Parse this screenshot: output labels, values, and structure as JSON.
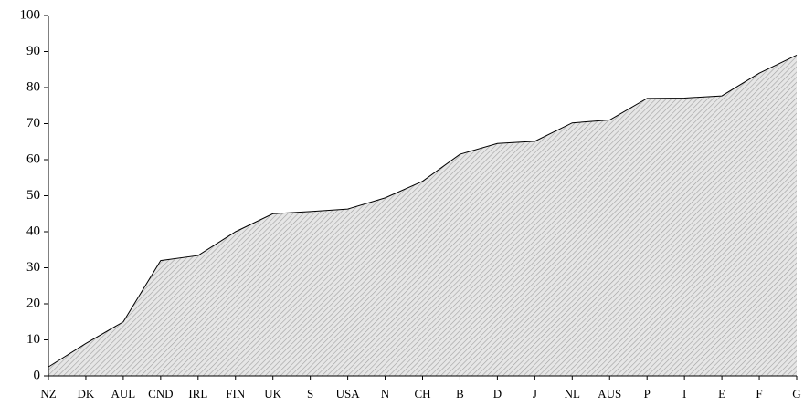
{
  "chart_data": {
    "type": "area",
    "categories": [
      "NZ",
      "DK",
      "AUL",
      "CND",
      "IRL",
      "FIN",
      "UK",
      "S",
      "USA",
      "N",
      "CH",
      "B",
      "D",
      "J",
      "NL",
      "AUS",
      "P",
      "I",
      "E",
      "F",
      "G"
    ],
    "values": [
      2.5,
      9,
      15,
      32,
      33.4,
      40,
      45,
      45.6,
      46.3,
      49.4,
      54,
      61.5,
      64.5,
      65.1,
      70.2,
      71,
      77,
      77.1,
      77.7,
      84,
      89
    ],
    "color": "#a0a0a0",
    "ylim": [
      0,
      100
    ],
    "yticks": [
      0,
      10,
      20,
      30,
      40,
      50,
      60,
      70,
      80,
      90,
      100
    ]
  }
}
